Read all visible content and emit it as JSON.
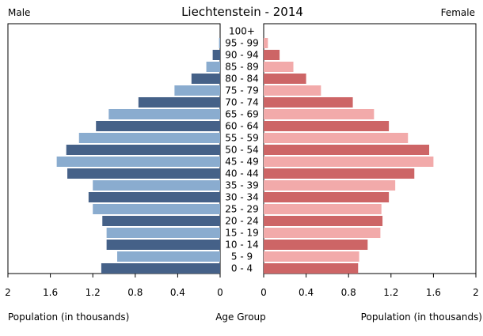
{
  "chart_data": {
    "type": "bar",
    "orientation": "horizontal-pyramid",
    "title": "Liechtenstein - 2014",
    "left_label": "Male",
    "right_label": "Female",
    "xlabel_left": "Population (in thousands)",
    "xlabel_center": "Age Group",
    "xlabel_right": "Population (in thousands)",
    "xlim": [
      0,
      2
    ],
    "ticks": [
      "2",
      "1.6",
      "1.2",
      "0.8",
      "0.4",
      "0"
    ],
    "ticks_right": [
      "0",
      "0.4",
      "0.8",
      "1.2",
      "1.6",
      "2"
    ],
    "tick_values": [
      0,
      0.4,
      0.8,
      1.2,
      1.6,
      2
    ],
    "categories": [
      "100+",
      "95 - 99",
      "90 - 94",
      "85 - 89",
      "80 - 84",
      "75 - 79",
      "70 - 74",
      "65 - 69",
      "60 - 64",
      "55 - 59",
      "50 - 54",
      "45 - 49",
      "40 - 44",
      "35 - 39",
      "30 - 34",
      "25 - 29",
      "20 - 24",
      "15 - 19",
      "10 - 14",
      "5 - 9",
      "0 - 4"
    ],
    "series": [
      {
        "name": "Male",
        "values": [
          0.0,
          0.01,
          0.07,
          0.13,
          0.27,
          0.43,
          0.77,
          1.05,
          1.17,
          1.33,
          1.45,
          1.54,
          1.44,
          1.2,
          1.24,
          1.2,
          1.11,
          1.07,
          1.07,
          0.97,
          1.12
        ],
        "colors": [
          "#456188",
          "#8aaccf"
        ]
      },
      {
        "name": "Female",
        "values": [
          0.0,
          0.04,
          0.15,
          0.28,
          0.4,
          0.54,
          0.84,
          1.04,
          1.18,
          1.36,
          1.56,
          1.6,
          1.42,
          1.24,
          1.18,
          1.11,
          1.12,
          1.1,
          0.98,
          0.9,
          0.89
        ],
        "colors": [
          "#cd6566",
          "#f2aaaa"
        ]
      }
    ]
  }
}
